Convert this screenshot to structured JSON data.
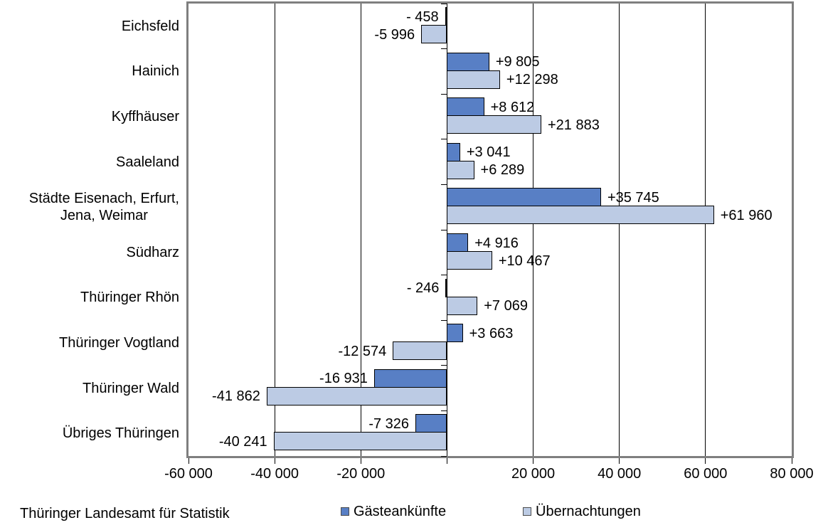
{
  "chart_data": {
    "type": "bar",
    "orientation": "horizontal",
    "title": "",
    "xlabel": "",
    "ylabel": "",
    "grid": "vertical-on",
    "legend_position": "bottom",
    "categories": [
      "Eichsfeld",
      "Hainich",
      "Kyffhäuser",
      "Saaleland",
      "Städte Eisenach, Erfurt,\nJena, Weimar",
      "Südharz",
      "Thüringer Rhön",
      "Thüringer Vogtland",
      "Thüringer Wald",
      "Übriges Thüringen"
    ],
    "series": [
      {
        "name": "Gästeankünfte",
        "color": "#587fc5",
        "values": [
          -458,
          9805,
          8612,
          3041,
          35745,
          4916,
          -246,
          3663,
          -16931,
          -7326
        ],
        "labels": [
          "- 458",
          "+9 805",
          "+8 612",
          "+3 041",
          "+35 745",
          "+4 916",
          "- 246",
          "+3 663",
          "-16 931",
          "-7 326"
        ]
      },
      {
        "name": "Übernachtungen",
        "color": "#bccbe4",
        "values": [
          -5996,
          12298,
          21883,
          6289,
          61960,
          10467,
          7069,
          -12574,
          -41862,
          -40241
        ],
        "labels": [
          "-5 996",
          "+12 298",
          "+21 883",
          "+6 289",
          "+61 960",
          "+10 467",
          "+7 069",
          "-12 574",
          "-41 862",
          "-40 241"
        ]
      }
    ],
    "x_axis": {
      "min": -60000,
      "max": 80000,
      "tick_step": 20000,
      "ticks": [
        -60000,
        -40000,
        -20000,
        0,
        20000,
        40000,
        60000,
        80000
      ],
      "tick_labels": [
        "-60 000",
        "-40 000",
        "-20 000",
        "",
        "20 000",
        "40 000",
        "60 000",
        "80 000"
      ],
      "gridlines": [
        -40000,
        -20000,
        20000,
        40000,
        60000
      ]
    },
    "colors": {
      "plot_border": "#7f7f7f",
      "axis_line": "#000000",
      "gridline": "#000000",
      "bar_border": "#000000",
      "background": "#ffffff"
    }
  },
  "legend": {
    "items": [
      {
        "label": "Gästeankünfte",
        "color": "#587fc5"
      },
      {
        "label": "Übernachtungen",
        "color": "#bccbe4"
      }
    ]
  },
  "footer": {
    "source": "Thüringer Landesamt für Statistik"
  }
}
